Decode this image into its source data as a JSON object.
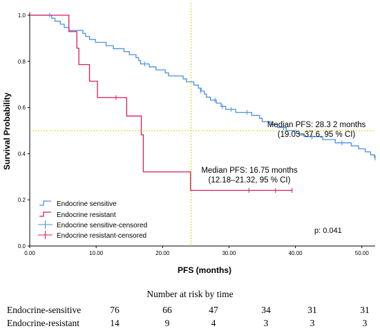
{
  "chart_data": {
    "type": "line",
    "subtype": "kaplan-meier",
    "xlabel": "PFS (months)",
    "ylabel": "Survival Probability",
    "xlim": [
      0,
      52
    ],
    "ylim": [
      0,
      1.0
    ],
    "x_ticks": [
      "0.00",
      "10.00",
      "20.00",
      "30.00",
      "40.00",
      "50.00"
    ],
    "y_ticks": [
      "0.0",
      "0.2",
      "0.4",
      "0.6",
      "0.8",
      "1.0"
    ],
    "grid": false,
    "legend_position": "bottom-left",
    "legend": [
      "Endocrine sensitive",
      "Endocrine resistant",
      "Endocrine sensitive-censored",
      "Endocrine resistant-censored"
    ],
    "series": [
      {
        "name": "Endocrine sensitive",
        "color": "#4a90e2",
        "steps": [
          [
            0,
            1.0
          ],
          [
            3.3,
            0.987
          ],
          [
            3.8,
            0.974
          ],
          [
            4.6,
            0.961
          ],
          [
            5.2,
            0.947
          ],
          [
            5.9,
            0.934
          ],
          [
            8.0,
            0.921
          ],
          [
            8.4,
            0.908
          ],
          [
            9.0,
            0.895
          ],
          [
            9.9,
            0.882
          ],
          [
            11.5,
            0.868
          ],
          [
            12.6,
            0.855
          ],
          [
            14.2,
            0.842
          ],
          [
            15.0,
            0.829
          ],
          [
            16.0,
            0.816
          ],
          [
            16.4,
            0.803
          ],
          [
            16.7,
            0.789
          ],
          [
            18.0,
            0.776
          ],
          [
            19.0,
            0.763
          ],
          [
            20.4,
            0.75
          ],
          [
            20.9,
            0.737
          ],
          [
            23.1,
            0.724
          ],
          [
            23.6,
            0.711
          ],
          [
            24.7,
            0.697
          ],
          [
            25.4,
            0.684
          ],
          [
            25.8,
            0.671
          ],
          [
            26.3,
            0.658
          ],
          [
            26.6,
            0.645
          ],
          [
            27.2,
            0.632
          ],
          [
            28.1,
            0.619
          ],
          [
            28.8,
            0.605
          ],
          [
            29.5,
            0.592
          ],
          [
            31.0,
            0.579
          ],
          [
            33.4,
            0.566
          ],
          [
            34.6,
            0.553
          ],
          [
            35.0,
            0.539
          ],
          [
            36.3,
            0.526
          ],
          [
            37.3,
            0.513
          ],
          [
            38.6,
            0.5
          ],
          [
            40.1,
            0.487
          ],
          [
            41.3,
            0.474
          ],
          [
            44.1,
            0.461
          ],
          [
            46.0,
            0.447
          ],
          [
            48.4,
            0.434
          ],
          [
            49.5,
            0.421
          ],
          [
            50.5,
            0.408
          ],
          [
            51.3,
            0.395
          ],
          [
            51.9,
            0.382
          ]
        ],
        "censored": [
          [
            3.0,
            1.0
          ],
          [
            17.3,
            0.789
          ],
          [
            25.7,
            0.671
          ],
          [
            27.9,
            0.632
          ],
          [
            29.0,
            0.605
          ],
          [
            30.3,
            0.592
          ],
          [
            32.7,
            0.579
          ],
          [
            36.6,
            0.526
          ],
          [
            38.2,
            0.513
          ],
          [
            42.5,
            0.474
          ],
          [
            47.0,
            0.447
          ],
          [
            52.0,
            0.382
          ]
        ]
      },
      {
        "name": "Endocrine resistant",
        "color": "#d81b60",
        "steps": [
          [
            0,
            1.0
          ],
          [
            5.9,
            0.929
          ],
          [
            7.1,
            0.857
          ],
          [
            7.4,
            0.786
          ],
          [
            9.0,
            0.714
          ],
          [
            10.2,
            0.643
          ],
          [
            14.6,
            0.563
          ],
          [
            16.8,
            0.482
          ],
          [
            17.1,
            0.321
          ],
          [
            24.2,
            0.241
          ]
        ],
        "censored": [
          [
            13.0,
            0.643
          ],
          [
            33.0,
            0.241
          ],
          [
            37.0,
            0.241
          ],
          [
            39.5,
            0.241
          ]
        ]
      }
    ],
    "reference_lines": {
      "median_survival_y": 0.5,
      "time_x": 24.3
    },
    "annotations": {
      "sensitive_median": [
        "Median PFS: 28.3 2 months",
        "(19.03–37.6, 95 % CI)"
      ],
      "resistant_median": [
        "Median PFS: 16.75 months",
        "(12.18–21.32, 95 % CI)"
      ],
      "p_value": "p: 0.041"
    }
  },
  "risk_table": {
    "title": "Number at risk by time",
    "rows": [
      {
        "label": "Endocrine-sensitive",
        "values": [
          "76",
          "66",
          "47",
          "34",
          "31",
          "31"
        ]
      },
      {
        "label": "Endocrine-resistant",
        "values": [
          "14",
          "9",
          "4",
          "3",
          "3",
          "3"
        ]
      }
    ]
  }
}
